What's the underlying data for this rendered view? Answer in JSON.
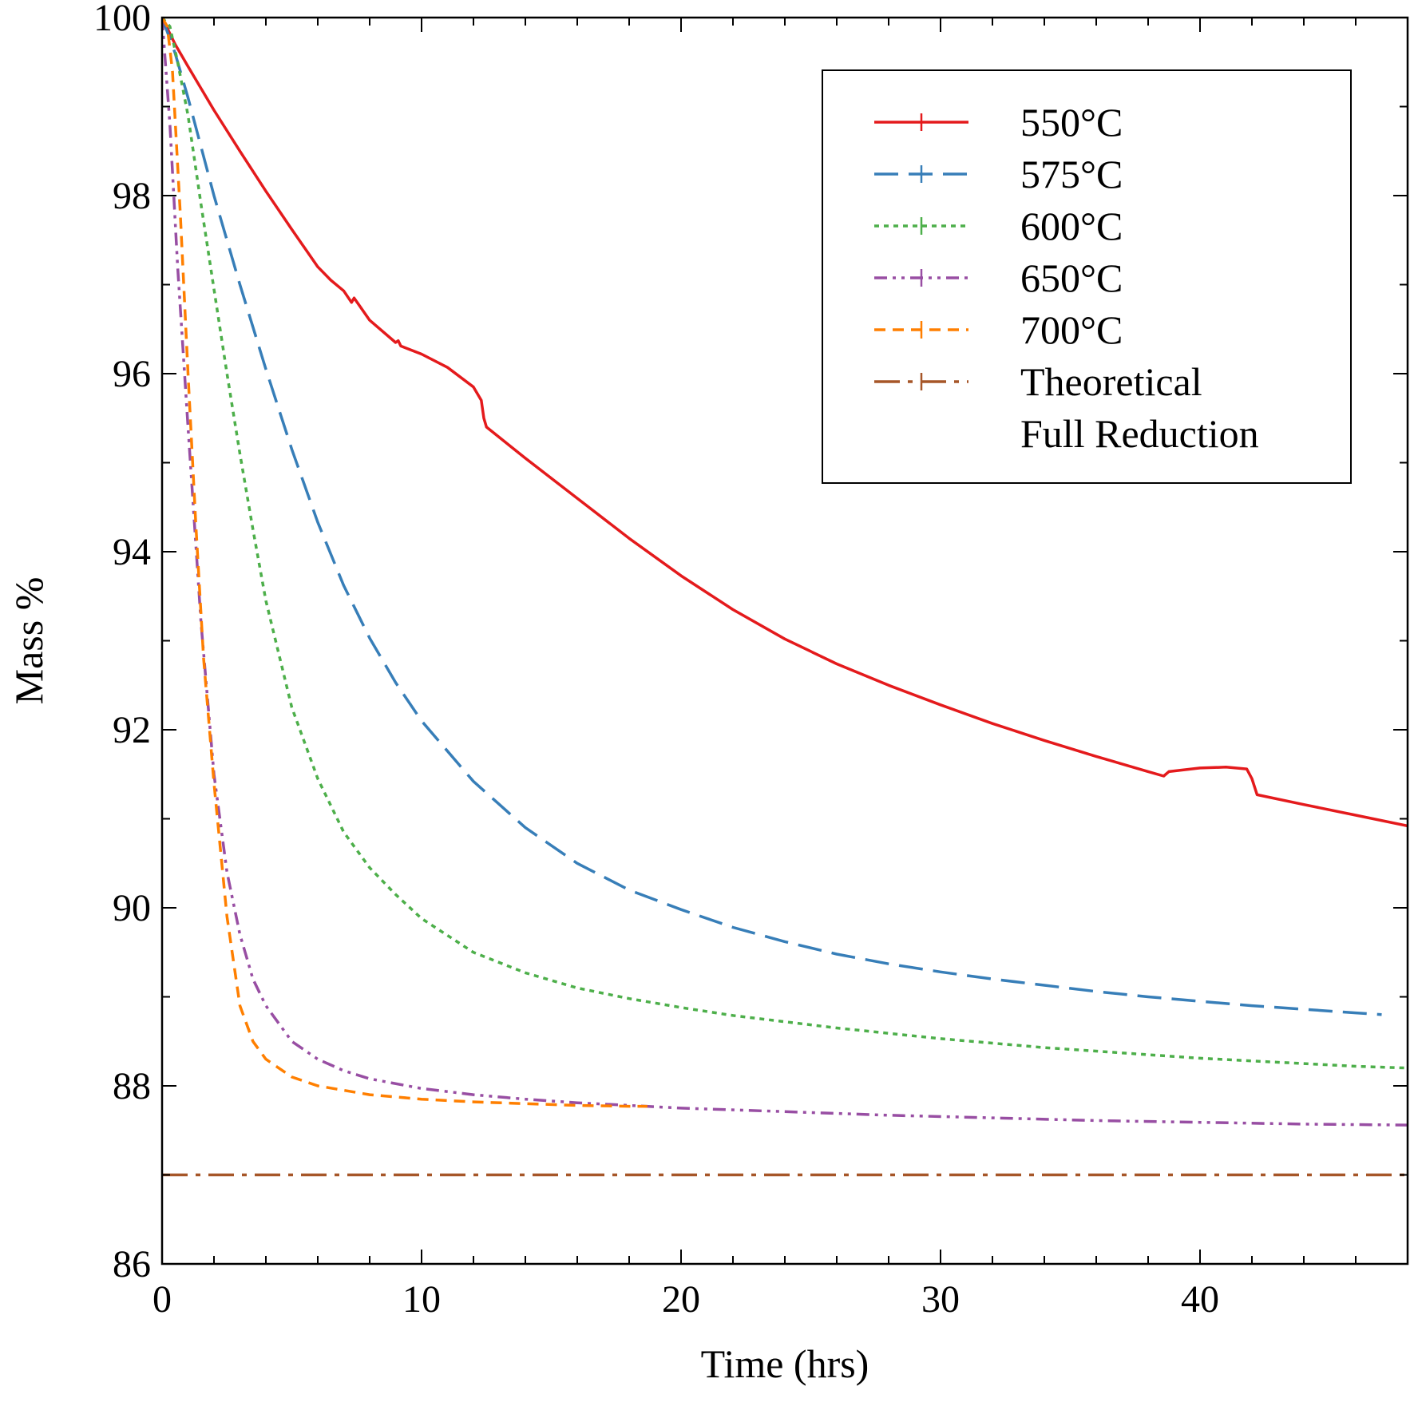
{
  "chart_data": {
    "type": "line",
    "xlabel": "Time (hrs)",
    "ylabel": "Mass %",
    "xlim": [
      0,
      48
    ],
    "ylim": [
      86,
      100
    ],
    "xticks": [
      0,
      10,
      20,
      30,
      40
    ],
    "xticks_minor_step": 2,
    "yticks": [
      86,
      88,
      90,
      92,
      94,
      96,
      98,
      100
    ],
    "yticks_minor_step": 1,
    "grid": false,
    "legend_position": "top-right",
    "series": [
      {
        "name": "550°C",
        "color": "#e41a1c",
        "dash": "solid",
        "x": [
          0,
          0.5,
          1,
          2,
          3,
          4,
          5,
          6,
          6.5,
          7,
          7.3,
          7.4,
          8,
          9,
          9.1,
          9.2,
          10,
          11,
          12,
          12.3,
          12.4,
          12.5,
          14,
          16,
          18,
          20,
          22,
          24,
          26,
          28,
          30,
          32,
          34,
          36,
          38,
          38.6,
          38.8,
          40,
          41,
          41.8,
          42,
          42.2,
          44,
          46,
          48
        ],
        "values": [
          100,
          99.7,
          99.45,
          98.96,
          98.5,
          98.05,
          97.62,
          97.2,
          97.05,
          96.93,
          96.8,
          96.85,
          96.6,
          96.35,
          96.37,
          96.31,
          96.22,
          96.07,
          95.85,
          95.7,
          95.5,
          95.4,
          95.05,
          94.6,
          94.15,
          93.73,
          93.35,
          93.02,
          92.74,
          92.5,
          92.28,
          92.07,
          91.88,
          91.7,
          91.53,
          91.48,
          91.53,
          91.57,
          91.58,
          91.56,
          91.45,
          91.27,
          91.16,
          91.04,
          90.92
        ]
      },
      {
        "name": "575°C",
        "color": "#377eb8",
        "dash": "dashed",
        "x": [
          0,
          0.5,
          1,
          2,
          3,
          4,
          5,
          6,
          7,
          8,
          9,
          10,
          12,
          14,
          16,
          18,
          20,
          22,
          24,
          26,
          28,
          30,
          32,
          34,
          36,
          38,
          40,
          42,
          44,
          46,
          47
        ],
        "values": [
          100,
          99.6,
          99.1,
          98.0,
          97.0,
          96.05,
          95.15,
          94.33,
          93.62,
          93.03,
          92.53,
          92.1,
          91.42,
          90.9,
          90.5,
          90.2,
          89.98,
          89.78,
          89.62,
          89.48,
          89.37,
          89.28,
          89.2,
          89.13,
          89.06,
          89.0,
          88.95,
          88.9,
          88.86,
          88.82,
          88.8
        ]
      },
      {
        "name": "600°C",
        "color": "#4daf4a",
        "dash": "dotted",
        "x": [
          0,
          0.3,
          0.6,
          1,
          1.5,
          2,
          2.5,
          3,
          3.5,
          4,
          5,
          6,
          7,
          8,
          9,
          10,
          12,
          14,
          16,
          18,
          20,
          22,
          24,
          26,
          28,
          30,
          32,
          34,
          36,
          38,
          40,
          42,
          44,
          46,
          48
        ],
        "values": [
          100,
          99.9,
          99.5,
          98.9,
          97.9,
          96.95,
          96.0,
          95.1,
          94.25,
          93.45,
          92.25,
          91.45,
          90.85,
          90.45,
          90.15,
          89.88,
          89.5,
          89.27,
          89.1,
          88.98,
          88.88,
          88.79,
          88.72,
          88.65,
          88.59,
          88.53,
          88.48,
          88.43,
          88.39,
          88.35,
          88.31,
          88.28,
          88.25,
          88.22,
          88.2
        ]
      },
      {
        "name": "650°C",
        "color": "#984ea3",
        "dash": "dash-dot-dot",
        "x": [
          0,
          0.3,
          0.6,
          1,
          1.5,
          2,
          2.5,
          3,
          3.5,
          4,
          5,
          6,
          7,
          8,
          10,
          12,
          14,
          16,
          18,
          20,
          24,
          28,
          32,
          36,
          40,
          44,
          48
        ],
        "values": [
          100,
          98.8,
          97.2,
          95.4,
          93.2,
          91.5,
          90.4,
          89.7,
          89.2,
          88.9,
          88.5,
          88.3,
          88.17,
          88.08,
          87.97,
          87.9,
          87.85,
          87.81,
          87.78,
          87.75,
          87.71,
          87.67,
          87.64,
          87.61,
          87.59,
          87.57,
          87.56
        ]
      },
      {
        "name": "700°C",
        "color": "#ff7f00",
        "dash": "short-dash",
        "x": [
          0,
          0.2,
          0.4,
          0.7,
          1,
          1.3,
          1.6,
          2,
          2.5,
          3,
          3.5,
          4,
          5,
          6,
          8,
          10,
          12,
          14,
          16,
          18,
          18.7
        ],
        "values": [
          100,
          99.9,
          99.4,
          97.8,
          96.0,
          94.3,
          92.8,
          91.4,
          89.9,
          88.9,
          88.5,
          88.3,
          88.1,
          88.0,
          87.9,
          87.85,
          87.82,
          87.8,
          87.78,
          87.77,
          87.77
        ]
      },
      {
        "name": "Theoretical\nFull Reduction",
        "color": "#a65628",
        "dash": "long-dash-dot",
        "x": [
          0,
          48
        ],
        "values": [
          87.0,
          87.0
        ]
      }
    ]
  },
  "legend": {
    "items": [
      {
        "label_lines": [
          "550°C"
        ],
        "color": "#e41a1c",
        "dash": "solid"
      },
      {
        "label_lines": [
          "575°C"
        ],
        "color": "#377eb8",
        "dash": "dashed"
      },
      {
        "label_lines": [
          "600°C"
        ],
        "color": "#4daf4a",
        "dash": "dotted"
      },
      {
        "label_lines": [
          "650°C"
        ],
        "color": "#984ea3",
        "dash": "dash-dot-dot"
      },
      {
        "label_lines": [
          "700°C"
        ],
        "color": "#ff7f00",
        "dash": "short-dash"
      },
      {
        "label_lines": [
          "Theoretical",
          "Full Reduction"
        ],
        "color": "#a65628",
        "dash": "long-dash-dot"
      }
    ]
  }
}
